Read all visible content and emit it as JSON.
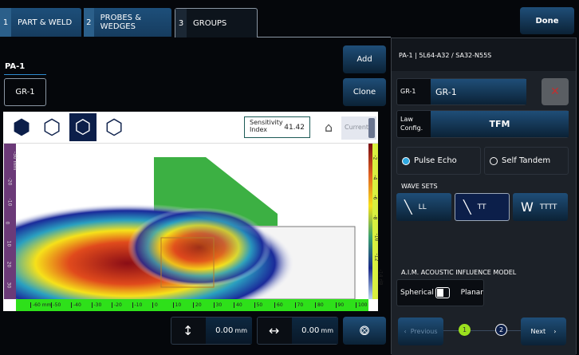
{
  "tabs": [
    {
      "num": "1",
      "label": "PART & WELD"
    },
    {
      "num": "2",
      "label": "PROBES & WEDGES"
    },
    {
      "num": "3",
      "label": "GROUPS",
      "active": true
    }
  ],
  "done_label": "Done",
  "group_tree": {
    "probe": "PA-1",
    "group": "GR-1"
  },
  "add_label": "Add",
  "clone_label": "Clone",
  "view_icons": [
    "cube-solid-icon",
    "cube-side-icon",
    "cube-front-icon",
    "cube-dashed-icon"
  ],
  "sensitivity": {
    "label_line1": "Sensitivity",
    "label_line2": "Index",
    "value": "41.42"
  },
  "current_label": "Current",
  "left_scale": {
    "labels": [
      "-30 mm",
      "-20",
      "-10",
      "0",
      "10",
      "20",
      "30"
    ]
  },
  "right_scale": {
    "labels": [
      "-2",
      "-4",
      "-6",
      "-8",
      "-10",
      "-12",
      "-14 dB"
    ]
  },
  "bottom_scale": {
    "labels": [
      "-60 mm",
      "-50",
      "-40",
      "-30",
      "-20",
      "-10",
      "0",
      "10",
      "20",
      "30",
      "40",
      "50",
      "60",
      "70",
      "80",
      "90",
      "100"
    ]
  },
  "offsets": {
    "vertical": {
      "value": "0.00",
      "unit": "mm"
    },
    "horizontal": {
      "value": "0.00",
      "unit": "mm"
    }
  },
  "panel": {
    "header": "PA-1 | 5L64-A32 / SA32-N55S",
    "group_label": "GR-1",
    "group_value": "GR-1",
    "law_label_1": "Law",
    "law_label_2": "Config.",
    "law_value": "TFM",
    "modes": [
      {
        "label": "Pulse Echo",
        "selected": true
      },
      {
        "label": "Self Tandem",
        "selected": false
      }
    ],
    "wave_sets_title": "WAVE SETS",
    "wave_sets": [
      {
        "label": "LL",
        "selected": false
      },
      {
        "label": "TT",
        "selected": true
      },
      {
        "label": "TTTT",
        "selected": false
      }
    ],
    "aim_title": "A.I.M. ACOUSTIC INFLUENCE MODEL",
    "aim_left": "Spherical",
    "aim_right": "Planar",
    "aim_planar": false,
    "prev_label": "Previous",
    "next_label": "Next",
    "steps": [
      "1",
      "2"
    ],
    "current_step": 1
  },
  "colors": {
    "accent": "#1f4e78",
    "active_step": "#9be01e",
    "weld": "#3cb043",
    "scale_green": "#2ee01a"
  }
}
